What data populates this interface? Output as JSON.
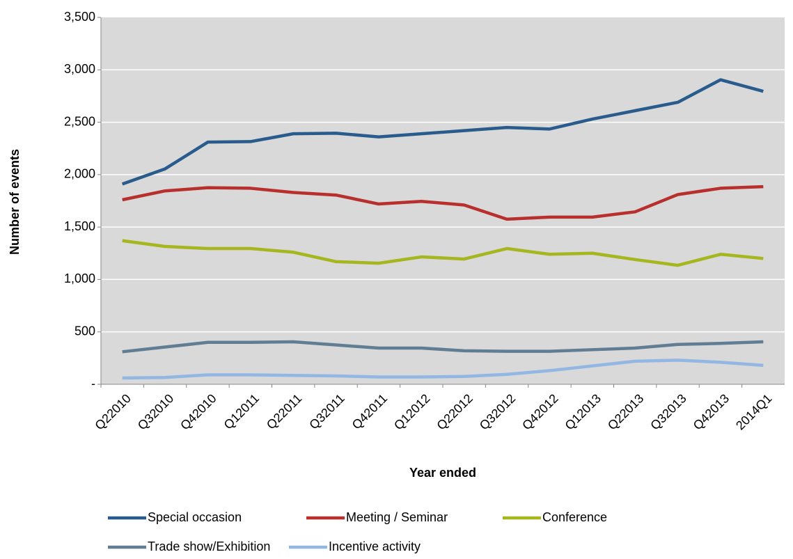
{
  "chart_data": {
    "type": "line",
    "x_label": "Year ended",
    "y_label": "Number of events",
    "categories": [
      "Q22010",
      "Q32010",
      "Q42010",
      "Q12011",
      "Q22011",
      "Q32011",
      "Q42011",
      "Q12012",
      "Q22012",
      "Q32012",
      "Q42012",
      "Q12013",
      "Q22013",
      "Q32013",
      "Q42013",
      "2014Q1"
    ],
    "series": [
      {
        "name": "Special occasion",
        "color": "#295B8C",
        "values": [
          1910,
          2055,
          2310,
          2315,
          2390,
          2395,
          2360,
          2390,
          2420,
          2450,
          2435,
          2530,
          2610,
          2690,
          2905,
          2795
        ]
      },
      {
        "name": "Meeting / Seminar",
        "color": "#B8302D",
        "values": [
          1760,
          1845,
          1875,
          1870,
          1830,
          1805,
          1720,
          1745,
          1710,
          1575,
          1595,
          1595,
          1645,
          1810,
          1870,
          1885
        ]
      },
      {
        "name": "Conference",
        "color": "#A5B61E",
        "values": [
          1370,
          1315,
          1295,
          1295,
          1260,
          1170,
          1155,
          1215,
          1195,
          1295,
          1240,
          1250,
          1190,
          1135,
          1240,
          1200
        ]
      },
      {
        "name": "Trade show/Exhibition",
        "color": "#607D93",
        "values": [
          310,
          355,
          400,
          400,
          405,
          375,
          345,
          345,
          320,
          315,
          315,
          330,
          345,
          380,
          390,
          405
        ]
      },
      {
        "name": "Incentive activity",
        "color": "#93B7E3",
        "values": [
          60,
          65,
          90,
          90,
          85,
          80,
          70,
          70,
          75,
          95,
          130,
          175,
          220,
          230,
          210,
          180
        ]
      }
    ],
    "ylim": [
      0,
      3500
    ],
    "yticks": [
      {
        "value": 0,
        "label": "-"
      },
      500,
      {
        "value": 1000,
        "label": "1,000"
      },
      {
        "value": 1500,
        "label": "1,500"
      },
      {
        "value": 2000,
        "label": "2,000"
      },
      {
        "value": 2500,
        "label": "2,500"
      },
      {
        "value": 3000,
        "label": "3,000"
      },
      {
        "value": 3500,
        "label": "3,500"
      }
    ],
    "grid": true,
    "legend": "bottom"
  }
}
